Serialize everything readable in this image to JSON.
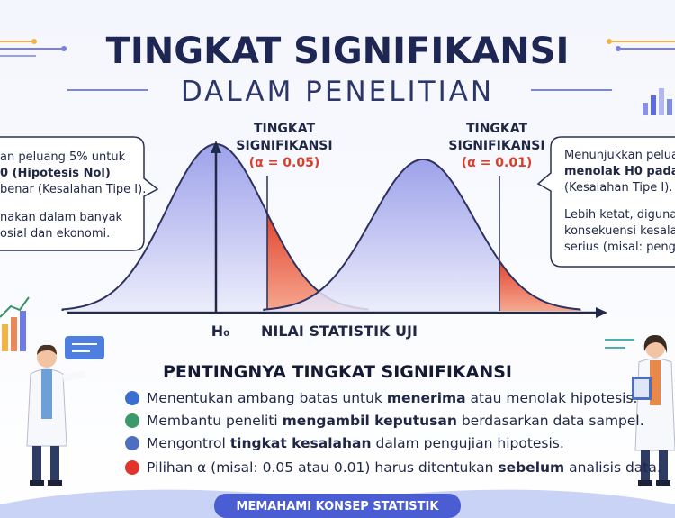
{
  "header": {
    "title": "TINGKAT SIGNIFIKANSI",
    "subtitle": "DALAM PENELITIAN"
  },
  "curves": [
    {
      "label": [
        "TINGKAT",
        "SIGNIFIKANSI",
        "(α = 0.05)"
      ]
    },
    {
      "label": [
        "TINGKAT",
        "SIGNIFIKANSI",
        "(α = 0.01)"
      ]
    }
  ],
  "axis": {
    "origin": "H₀",
    "x_label": "NILAI STATISTIK UJI"
  },
  "callouts": [
    {
      "lines": [
        "an peluang 5% untuk",
        "0 (Hipotesis Nol)",
        "benar (Kesalahan Tipe I).",
        "nakan dalam banyak",
        "osial dan ekonomi."
      ]
    },
    {
      "lines": [
        "Menunjukkan peluang",
        "menolak H0 pada",
        "(Kesalahan Tipe I).",
        "Lebih ketat, digunak",
        "konsekuensi kesalah",
        "serius (misal: penguj"
      ]
    }
  ],
  "section": {
    "title": "PENTINGNYA TINGKAT SIGNIFIKANSI",
    "items": [
      [
        "Menentukan ambang batas untuk ",
        "menerima",
        " atau menolak hipotesis."
      ],
      [
        "Membantu peneliti ",
        "mengambil keputusan",
        " berdasarkan data sampel."
      ],
      [
        "Mengontrol ",
        "tingkat kesalahan",
        " dalam pengujian hipotesis."
      ],
      [
        "Pilihan α (misal: 0.05 atau 0.01) harus ditentukan ",
        "sebelum",
        " analisis data."
      ]
    ]
  },
  "footer": "MEMAHAMI KONSEP STATISTIK"
}
